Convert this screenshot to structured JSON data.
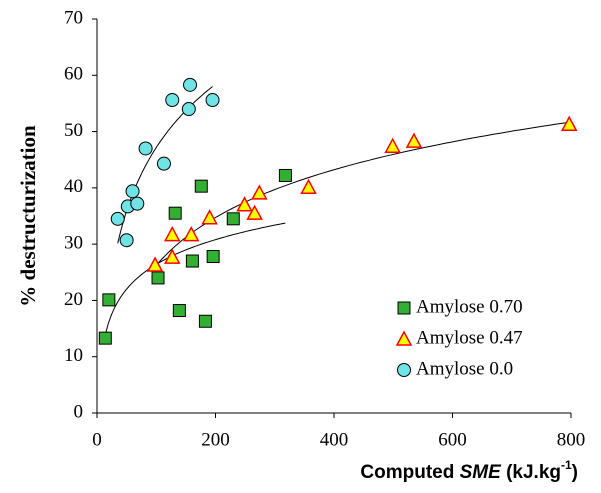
{
  "chart_data": {
    "type": "scatter",
    "x_label": [
      "Computed ",
      "SME",
      " (kJ.kg",
      "-1",
      ")"
    ],
    "y_label": "% destructurization",
    "xlim": [
      0,
      800
    ],
    "xticks": [
      0,
      200,
      400,
      600,
      800
    ],
    "ylim": [
      0,
      70
    ],
    "yticks": [
      0,
      10,
      20,
      30,
      40,
      50,
      60,
      70
    ],
    "trendline": "log",
    "legend": "lower right",
    "series": [
      {
        "name": "Amylose 0.70",
        "marker": "square",
        "color": "#33b033",
        "x": [
          14,
          20,
          103,
          132,
          139,
          161,
          176,
          183,
          196,
          230,
          318
        ],
        "values": [
          13.3,
          20.1,
          24,
          35.5,
          18.2,
          27,
          40.3,
          16.3,
          27.8,
          34.5,
          42.2
        ]
      },
      {
        "name": "Amylose 0.47",
        "marker": "triangle",
        "color": "#ffff00",
        "x": [
          98,
          127,
          127,
          159,
          190,
          249,
          266,
          274,
          357,
          499,
          535,
          797
        ],
        "values": [
          26.3,
          27.7,
          31.7,
          31.7,
          34.7,
          37,
          35.5,
          39.1,
          40.1,
          47.4,
          48.3,
          51.3
        ]
      },
      {
        "name": "Amylose 0.0",
        "marker": "circle",
        "color": "#70e4e4",
        "x": [
          35,
          50,
          52,
          60,
          68,
          82,
          113,
          127,
          155,
          157,
          195
        ],
        "values": [
          34.5,
          30.7,
          36.7,
          39.4,
          37.2,
          47,
          44.3,
          55.6,
          54,
          58.3,
          55.6
        ]
      }
    ]
  }
}
